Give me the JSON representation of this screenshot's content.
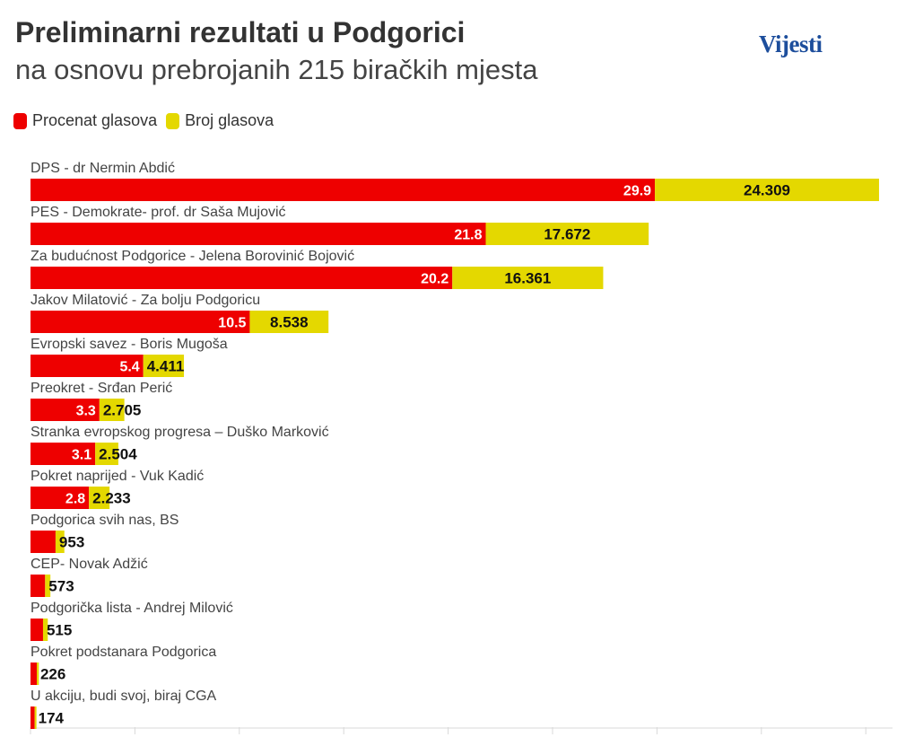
{
  "header": {
    "title": "Preliminarni rezultati u Podgorici",
    "subtitle": "na osnovu prebrojanih 215 biračkih mjesta",
    "logo_text": "Vijesti"
  },
  "colors": {
    "percent": "#ee0000",
    "votes": "#e4d800",
    "grid": "#d8d8d8"
  },
  "chart_data": {
    "type": "bar",
    "orientation": "horizontal",
    "stacked": true,
    "title": "Preliminarni rezultati u Podgorici",
    "subtitle": "na osnovu prebrojanih 215 biračkih mjesta",
    "legend": [
      "Procenat glasova",
      "Broj glasova"
    ],
    "legend_position": "top-left",
    "grid": true,
    "categories": [
      "DPS - dr Nermin Abdić",
      "PES - Demokrate- prof. dr Saša Mujović",
      "Za budućnost Podgorice - Jelena Borovinić Bojović",
      "Jakov Milatović - Za bolju Podgoricu",
      "Evropski savez - Boris Mugoša",
      "Preokret - Srđan Perić",
      "Stranka evropskog progresa – Duško Marković",
      "Pokret naprijed - Vuk Kadić",
      "Podgorica svih nas, BS",
      "CEP- Novak Adžić",
      "Podgorička lista - Andrej Milović",
      "Pokret podstanara Podgorica",
      "U akciju, budi svoj, biraj CGA"
    ],
    "series": [
      {
        "name": "Procenat glasova",
        "values": [
          29.9,
          21.8,
          20.2,
          10.5,
          5.4,
          3.3,
          3.1,
          2.8,
          1.2,
          0.7,
          0.6,
          0.3,
          0.2
        ],
        "labels": [
          "29.9",
          "21.8",
          "20.2",
          "10.5",
          "5.4",
          "3.3",
          "3.1",
          "2.8",
          "",
          "",
          "",
          "",
          ""
        ]
      },
      {
        "name": "Broj glasova",
        "values": [
          24309,
          17672,
          16361,
          8538,
          4411,
          2705,
          2504,
          2233,
          953,
          573,
          515,
          226,
          174
        ],
        "labels": [
          "24.309",
          "17.672",
          "16.361",
          "8.538",
          "4.411",
          "2.705",
          "2.504",
          "2.233",
          "953",
          "573",
          "515",
          "226",
          "174"
        ]
      }
    ]
  }
}
